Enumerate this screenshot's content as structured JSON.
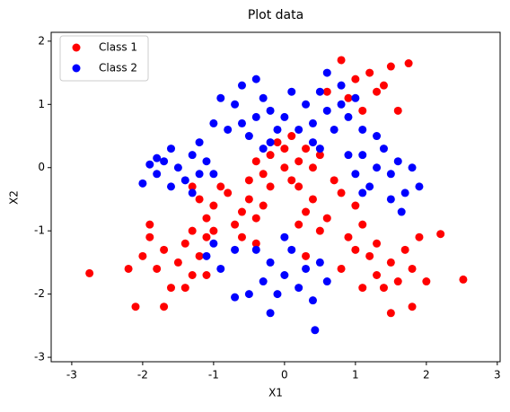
{
  "chart_data": {
    "type": "scatter",
    "title": "Plot data",
    "x_label": "X1",
    "y_label": "X2",
    "xlim": [
      -3.29,
      3.04
    ],
    "ylim": [
      -3.07,
      2.14
    ],
    "xticks": [
      -3,
      -2,
      -1,
      0,
      1,
      2,
      3
    ],
    "yticks": [
      -3,
      -2,
      -1,
      0,
      1,
      2
    ],
    "legend": "upper left",
    "grid": false,
    "series": [
      {
        "name": "Class 1",
        "color": "#ff0000",
        "x": [
          0,
          0.2,
          -0.2,
          0.1,
          -0.3,
          0.3,
          -0.1,
          0.4,
          -0.4,
          0.2,
          0,
          -0.2,
          0.5,
          0.1,
          -0.5,
          -1,
          -0.8,
          -0.6,
          -1.1,
          -0.7,
          -0.9,
          -0.5,
          -1.2,
          -0.4,
          -0.3,
          -0.6,
          -1,
          -1.5,
          -1.7,
          -1.3,
          -1.8,
          -1.4,
          -2,
          -1.6,
          -1.2,
          -1.9,
          -2.2,
          -1.1,
          -1.7,
          -1.4,
          -2.1,
          -2.75,
          -1.9,
          -1.3,
          -1.1,
          0.4,
          0.6,
          0.8,
          0.3,
          0.7,
          1,
          0.5,
          0.9,
          0.2,
          1.1,
          1.5,
          1.3,
          1.7,
          1.4,
          1.6,
          1.8,
          1.2,
          1.9,
          1.1,
          2,
          1.5,
          2.2,
          1.8,
          2.52,
          1.3,
          1,
          0.8,
          1,
          1.3,
          0.8,
          1.2,
          1.5,
          1.75,
          0.9,
          1.1,
          1.4,
          0.6,
          1.6,
          -1.3,
          -0.4,
          0.3
        ],
        "values": [
          0,
          0.1,
          0.2,
          -0.2,
          -0.1,
          0.3,
          0.4,
          0,
          0.1,
          -0.3,
          0.3,
          -0.3,
          0.2,
          0.5,
          -0.2,
          -0.6,
          -0.4,
          -0.7,
          -0.8,
          -0.9,
          -0.3,
          -0.5,
          -0.5,
          -0.8,
          -0.6,
          -1.1,
          -1,
          -1.5,
          -1.3,
          -1.7,
          -1.6,
          -1.2,
          -1.4,
          -1.9,
          -1.4,
          -1.1,
          -1.6,
          -1.1,
          -2.2,
          -1.9,
          -2.2,
          -1.67,
          -0.9,
          -1,
          -1.7,
          -0.5,
          -0.8,
          -0.4,
          -0.7,
          -0.2,
          -0.6,
          -1,
          -1.1,
          -0.9,
          -0.9,
          -1.5,
          -1.7,
          -1.3,
          -1.9,
          -1.8,
          -1.6,
          -1.4,
          -1.1,
          -1.9,
          -1.8,
          -2.3,
          -1.05,
          -2.2,
          -1.77,
          -1.2,
          -1.3,
          -1.6,
          1.4,
          1.2,
          1.7,
          1.5,
          1.6,
          1.65,
          1.1,
          0.9,
          1.3,
          1.2,
          0.9,
          -0.3,
          -1.2,
          -1.4
        ]
      },
      {
        "name": "Class 2",
        "color": "#0000ff",
        "x": [
          -1.5,
          -1.3,
          -1.7,
          -1.4,
          -1.2,
          -1.8,
          -1.6,
          -1.1,
          -1.9,
          -1.3,
          -2,
          -1.2,
          -1,
          -1.6,
          -1.8,
          -0.4,
          -0.2,
          -0.6,
          -0.3,
          -0.5,
          -0.1,
          -0.7,
          -0.4,
          -0.8,
          -0.2,
          -0.9,
          -0.6,
          -1,
          -0.3,
          0,
          0.6,
          0.4,
          0.8,
          0.5,
          0.7,
          0.3,
          0.9,
          0.6,
          0.2,
          1,
          0.4,
          0.8,
          0.5,
          0.1,
          1.1,
          1.3,
          1.1,
          1.5,
          1.2,
          1.4,
          1,
          1.6,
          1.7,
          1.3,
          0.9,
          1.8,
          1.5,
          1.1,
          1.65,
          1.9,
          0,
          -0.2,
          0.2,
          -0.1,
          0.3,
          -0.3,
          0.1,
          0.4,
          -0.4,
          0.5,
          -0.2,
          0.43,
          0,
          0.6,
          -0.5,
          -1,
          -1.1,
          -0.9,
          -0.7,
          -0.7
        ],
        "values": [
          0,
          0.2,
          0.1,
          -0.2,
          -0.1,
          -0.1,
          0.3,
          0.1,
          0.05,
          -0.4,
          -0.25,
          0.4,
          -0.1,
          -0.3,
          0.15,
          0.8,
          0.9,
          0.7,
          1.1,
          0.5,
          0.6,
          1,
          1.4,
          0.6,
          0.4,
          1.1,
          1.3,
          0.7,
          0.3,
          0.8,
          0.9,
          0.7,
          1,
          1.2,
          0.6,
          1,
          0.8,
          1.5,
          0.6,
          1.1,
          0.4,
          1.3,
          0.3,
          1.2,
          0.6,
          0,
          0.2,
          -0.1,
          -0.3,
          0.3,
          -0.1,
          0.1,
          -0.4,
          0.5,
          0.2,
          0,
          -0.5,
          -0.4,
          -0.7,
          -0.3,
          -1.7,
          -1.5,
          -1.9,
          -2,
          -1.6,
          -1.8,
          -1.3,
          -2.1,
          -1.3,
          -1.5,
          -2.3,
          -2.57,
          -1.1,
          -1.8,
          -2,
          -1.2,
          -1.4,
          -1.6,
          -1.3,
          -2.05
        ]
      }
    ]
  }
}
